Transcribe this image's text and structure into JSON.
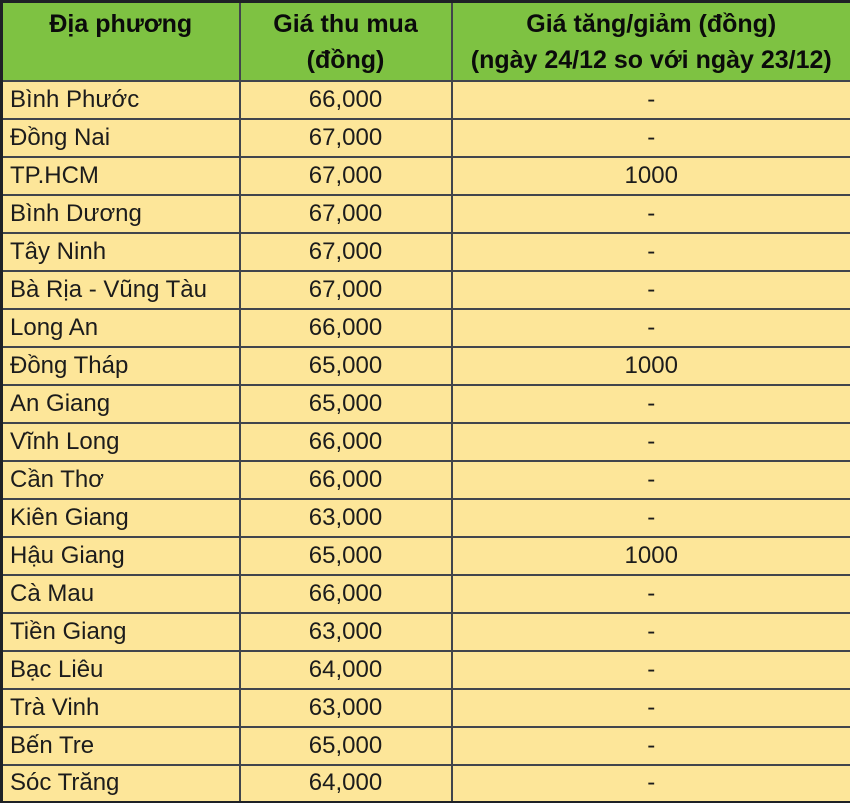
{
  "colors": {
    "header_bg": "#7ec242",
    "row_bg": "#fde699",
    "grid_border": "#41454c",
    "outer_border": "#1e2126",
    "header_text": "#0b0b0b",
    "body_text": "#1c1c1c"
  },
  "header": {
    "location": "Địa phương",
    "price_line1": "Giá thu mua",
    "price_line2": "(đồng)",
    "change_line1": "Giá tăng/giảm (đồng)",
    "change_line2": "(ngày 24/12 so với ngày 23/12)"
  },
  "rows": [
    {
      "location": "Bình Phước",
      "price": "66,000",
      "change": "-"
    },
    {
      "location": "Đồng Nai",
      "price": "67,000",
      "change": "-"
    },
    {
      "location": "TP.HCM",
      "price": "67,000",
      "change": "1000"
    },
    {
      "location": "Bình Dương",
      "price": "67,000",
      "change": "-"
    },
    {
      "location": "Tây Ninh",
      "price": "67,000",
      "change": "-"
    },
    {
      "location": "Bà Rịa - Vũng Tàu",
      "price": "67,000",
      "change": "-"
    },
    {
      "location": "Long An",
      "price": "66,000",
      "change": "-"
    },
    {
      "location": "Đồng Tháp",
      "price": "65,000",
      "change": "1000"
    },
    {
      "location": "An Giang",
      "price": "65,000",
      "change": "-"
    },
    {
      "location": "Vĩnh Long",
      "price": "66,000",
      "change": "-"
    },
    {
      "location": "Cần Thơ",
      "price": "66,000",
      "change": "-"
    },
    {
      "location": "Kiên Giang",
      "price": "63,000",
      "change": "-"
    },
    {
      "location": "Hậu Giang",
      "price": "65,000",
      "change": "1000"
    },
    {
      "location": "Cà Mau",
      "price": "66,000",
      "change": "-"
    },
    {
      "location": "Tiền Giang",
      "price": "63,000",
      "change": "-"
    },
    {
      "location": "Bạc Liêu",
      "price": "64,000",
      "change": "-"
    },
    {
      "location": "Trà Vinh",
      "price": "63,000",
      "change": "-"
    },
    {
      "location": "Bến Tre",
      "price": "65,000",
      "change": "-"
    },
    {
      "location": "Sóc Trăng",
      "price": "64,000",
      "change": "-"
    }
  ],
  "chart_data": {
    "type": "table",
    "title": "",
    "columns": [
      "Địa phương",
      "Giá thu mua (đồng)",
      "Giá tăng/giảm (đồng) (ngày 24/12 so với ngày 23/12)"
    ],
    "rows": [
      [
        "Bình Phước",
        "66,000",
        "-"
      ],
      [
        "Đồng Nai",
        "67,000",
        "-"
      ],
      [
        "TP.HCM",
        "67,000",
        "1000"
      ],
      [
        "Bình Dương",
        "67,000",
        "-"
      ],
      [
        "Tây Ninh",
        "67,000",
        "-"
      ],
      [
        "Bà Rịa - Vũng Tàu",
        "67,000",
        "-"
      ],
      [
        "Long An",
        "66,000",
        "-"
      ],
      [
        "Đồng Tháp",
        "65,000",
        "1000"
      ],
      [
        "An Giang",
        "65,000",
        "-"
      ],
      [
        "Vĩnh Long",
        "66,000",
        "-"
      ],
      [
        "Cần Thơ",
        "66,000",
        "-"
      ],
      [
        "Kiên Giang",
        "63,000",
        "-"
      ],
      [
        "Hậu Giang",
        "65,000",
        "1000"
      ],
      [
        "Cà Mau",
        "66,000",
        "-"
      ],
      [
        "Tiền Giang",
        "63,000",
        "-"
      ],
      [
        "Bạc Liêu",
        "64,000",
        "-"
      ],
      [
        "Trà Vinh",
        "63,000",
        "-"
      ],
      [
        "Bến Tre",
        "65,000",
        "-"
      ],
      [
        "Sóc Trăng",
        "64,000",
        "-"
      ]
    ]
  }
}
